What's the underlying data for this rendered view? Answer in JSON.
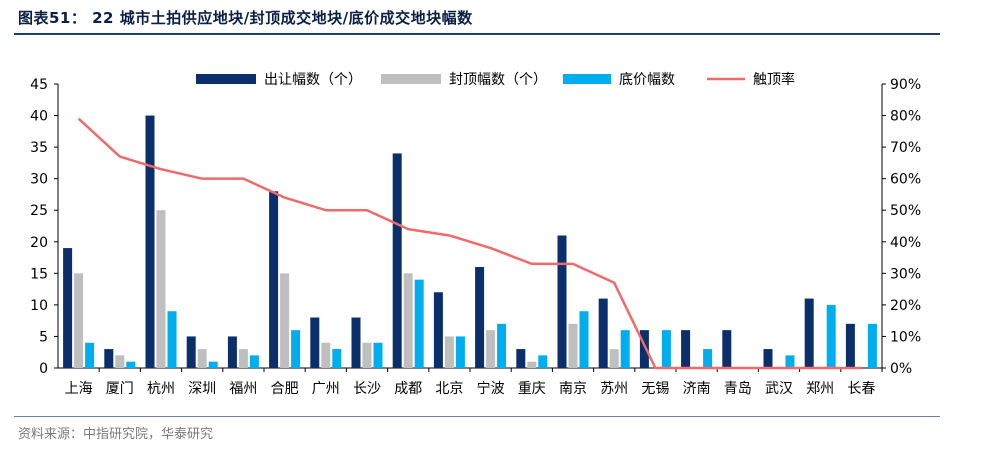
{
  "title": "图表51： 22 城市土拍供应地块/封顶成交地块/底价成交地块幅数",
  "source": "资料来源：中指研究院，华泰研究",
  "chart_data": {
    "type": "bar",
    "categories": [
      "上海",
      "厦门",
      "杭州",
      "深圳",
      "福州",
      "合肥",
      "广州",
      "长沙",
      "成都",
      "北京",
      "宁波",
      "重庆",
      "南京",
      "苏州",
      "无锡",
      "济南",
      "青岛",
      "武汉",
      "郑州",
      "长春"
    ],
    "series": [
      {
        "name": "出让幅数（个）",
        "type": "bar",
        "axis": "left",
        "color": "#0b2f6b",
        "values": [
          19,
          3,
          40,
          5,
          5,
          28,
          8,
          8,
          34,
          12,
          16,
          3,
          21,
          11,
          6,
          6,
          6,
          3,
          11,
          7
        ]
      },
      {
        "name": "封顶幅数（个）",
        "type": "bar",
        "axis": "left",
        "color": "#bfbfbf",
        "values": [
          15,
          2,
          25,
          3,
          3,
          15,
          4,
          4,
          15,
          5,
          6,
          1,
          7,
          3,
          0,
          0,
          0,
          0,
          0,
          0
        ]
      },
      {
        "name": "底价幅数",
        "type": "bar",
        "axis": "left",
        "color": "#00aeef",
        "values": [
          4,
          1,
          9,
          1,
          2,
          6,
          3,
          4,
          14,
          5,
          7,
          2,
          9,
          6,
          6,
          3,
          0,
          2,
          10,
          7
        ]
      },
      {
        "name": "触顶率",
        "type": "line",
        "axis": "right",
        "color": "#f06a6a",
        "values": [
          0.79,
          0.67,
          0.63,
          0.6,
          0.6,
          0.54,
          0.5,
          0.5,
          0.44,
          0.42,
          0.38,
          0.33,
          0.33,
          0.27,
          0,
          0,
          0,
          0,
          0,
          0
        ]
      }
    ],
    "y_left": {
      "min": 0,
      "max": 45,
      "ticks": [
        0,
        5,
        10,
        15,
        20,
        25,
        30,
        35,
        40,
        45
      ]
    },
    "y_right": {
      "min": 0,
      "max": 0.9,
      "ticks": [
        "0%",
        "10%",
        "20%",
        "30%",
        "40%",
        "50%",
        "60%",
        "70%",
        "80%",
        "90%"
      ]
    },
    "legend_position": "top",
    "grid": false
  }
}
